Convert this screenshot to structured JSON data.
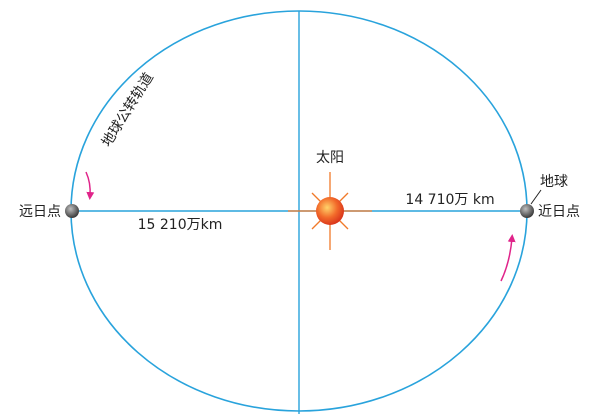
{
  "orbit_label": "地球公转轨道",
  "sun": {
    "label": "太阳"
  },
  "aphelion": {
    "label": "远日点",
    "distance": "15 210万km"
  },
  "perihelion": {
    "label": "近日点",
    "distance": "14 710万 km",
    "earth_label": "地球"
  }
}
